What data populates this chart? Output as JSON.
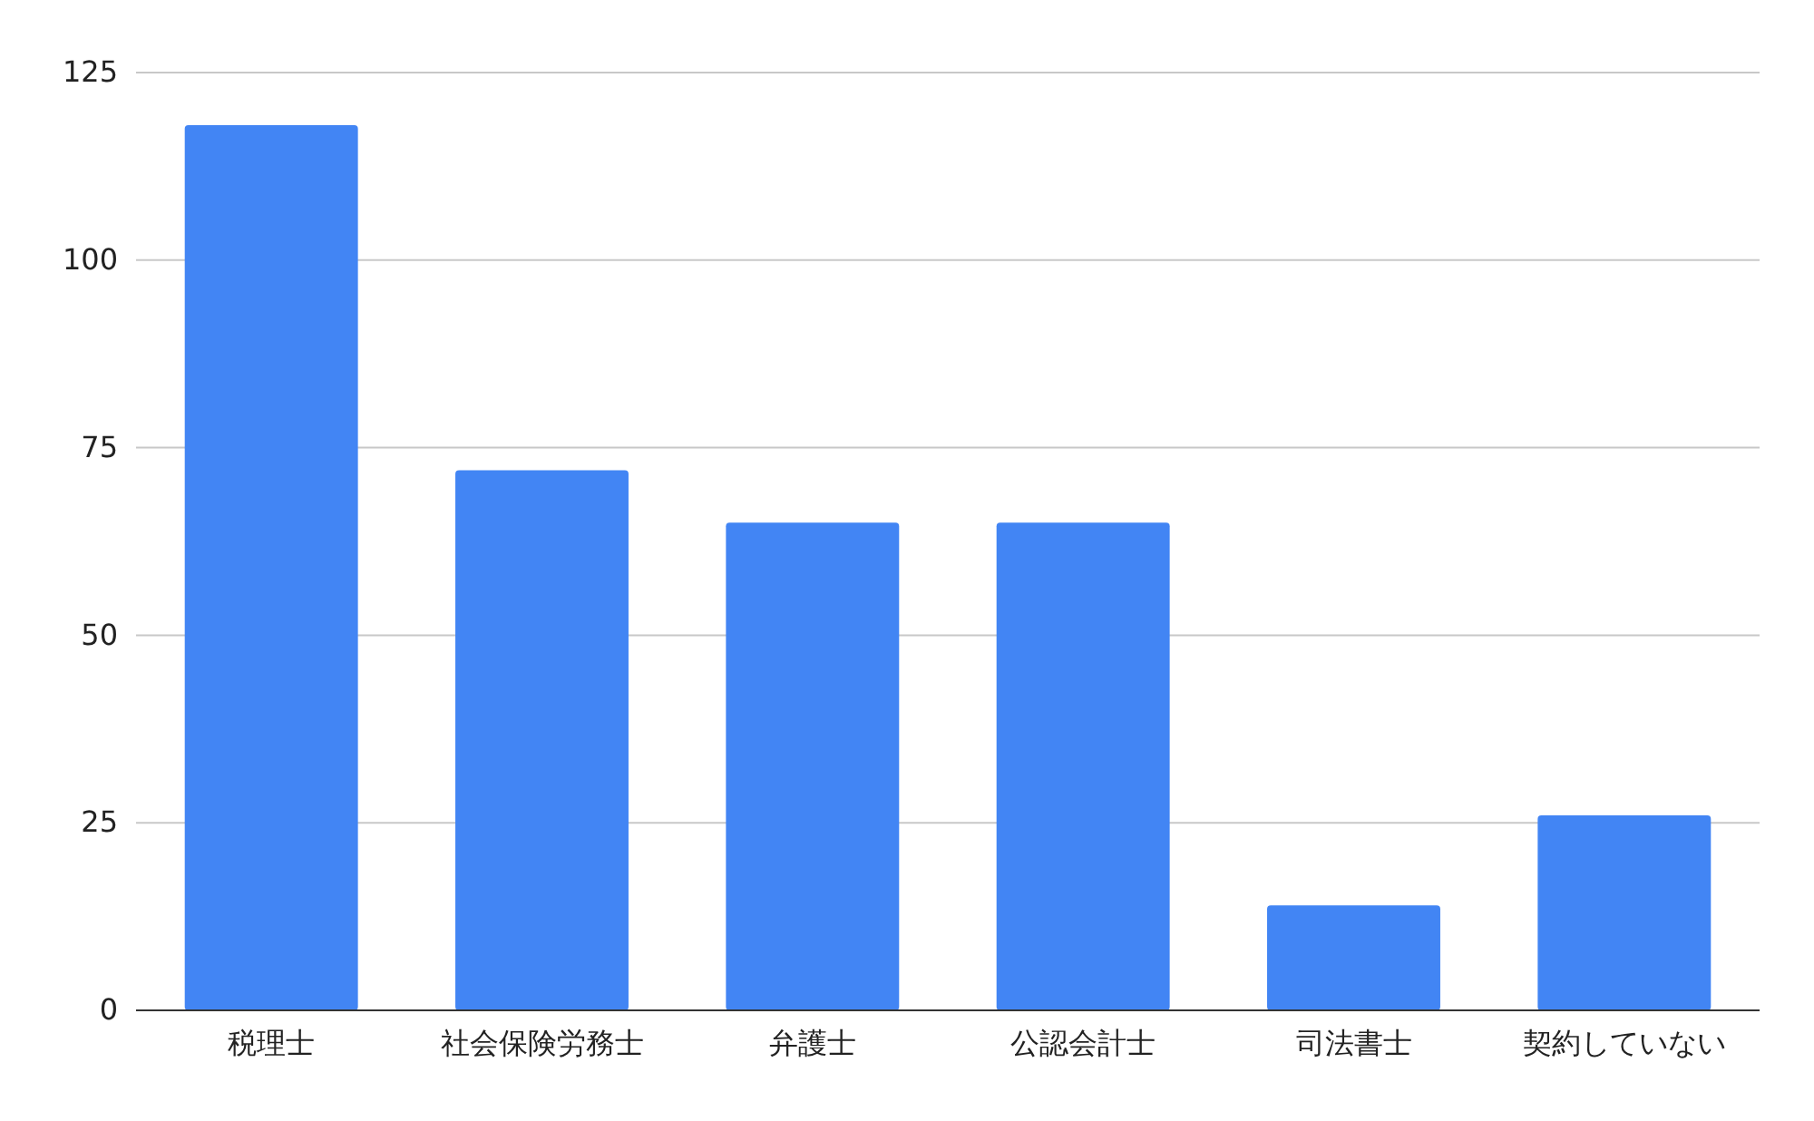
{
  "chart_data": {
    "type": "bar",
    "categories": [
      "税理士",
      "社会保険労務士",
      "弁護士",
      "公認会計士",
      "司法書士",
      "契約していない"
    ],
    "values": [
      118,
      72,
      65,
      65,
      14,
      26
    ],
    "color": "#4285f4",
    "ylim": [
      0,
      125
    ],
    "yticks": [
      0,
      25,
      50,
      75,
      100,
      125
    ],
    "grid": "y"
  }
}
